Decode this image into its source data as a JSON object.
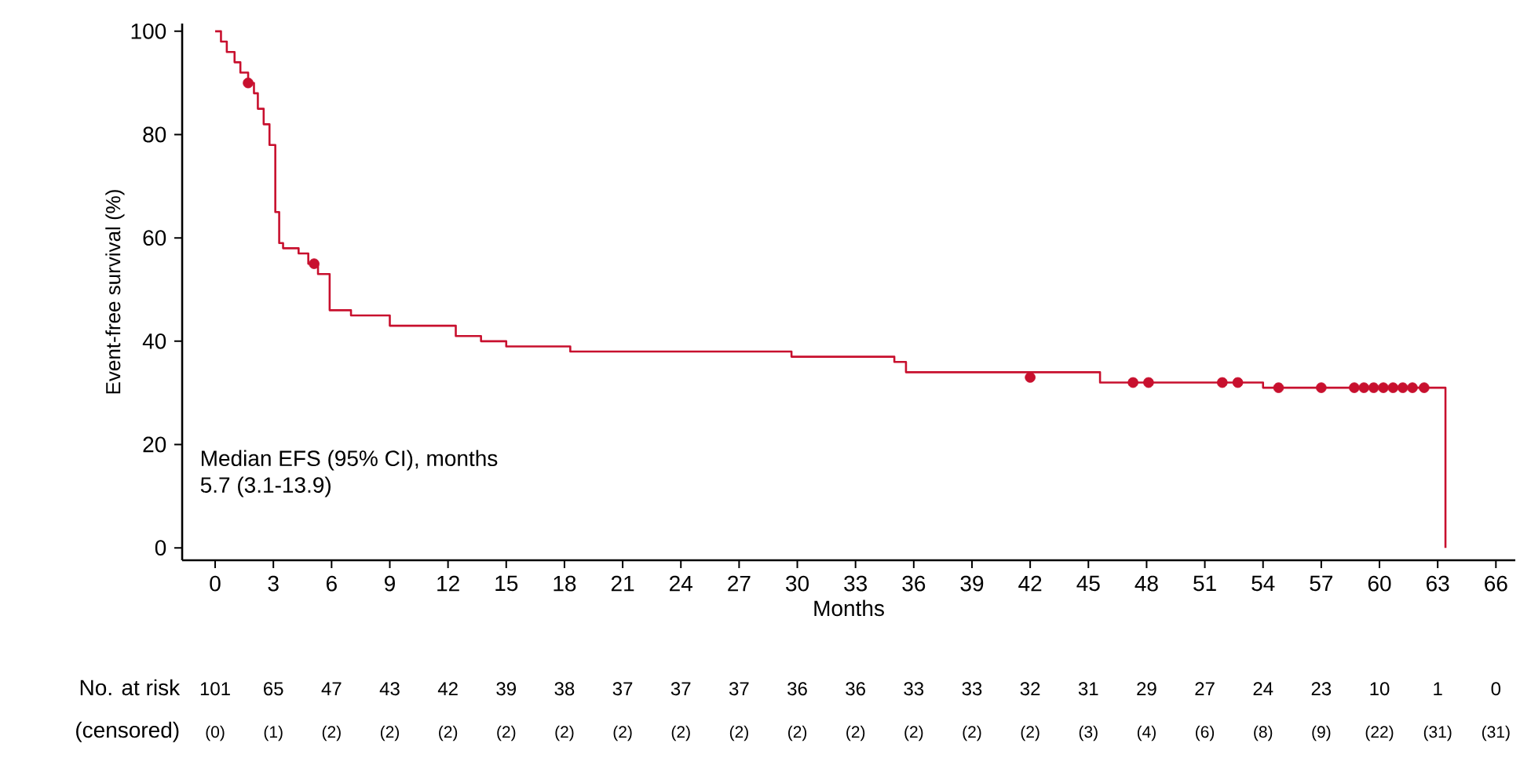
{
  "chart_data": {
    "type": "step",
    "xlabel": "Months",
    "ylabel": "Event-free survival (%)",
    "xlim": [
      -1.7,
      67
    ],
    "ylim": [
      -2.4,
      101.5
    ],
    "xticks": [
      0,
      3,
      6,
      9,
      12,
      15,
      18,
      21,
      24,
      27,
      30,
      33,
      36,
      39,
      42,
      45,
      48,
      51,
      54,
      57,
      60,
      63,
      66
    ],
    "yticks": [
      0,
      20,
      40,
      60,
      80,
      100
    ],
    "grid": false,
    "series": [
      {
        "color": "#c8102e",
        "line_style": "solid",
        "x": [
          0,
          0.3,
          0.6,
          1.0,
          1.3,
          1.7,
          2.0,
          2.2,
          2.5,
          2.8,
          3.1,
          3.3,
          3.5,
          4.3,
          4.8,
          5.3,
          5.9,
          7.0,
          9.0,
          12.4,
          13.7,
          15.0,
          18.3,
          29.7,
          35.0,
          35.6,
          45.6,
          54.0,
          63.4
        ],
        "values": [
          100,
          98,
          96,
          94,
          92,
          90,
          88,
          85,
          82,
          78,
          65,
          59,
          58,
          57,
          55,
          53,
          46,
          45,
          43,
          41,
          40,
          39,
          38,
          37,
          36,
          34,
          32,
          31,
          0
        ]
      },
      {
        "type": "scatter",
        "color": "#c8102e",
        "marker": "circle",
        "x": [
          1.7,
          5.1,
          42.0,
          47.3,
          48.1,
          51.9,
          52.7,
          54.8,
          57.0,
          58.7,
          59.2,
          59.7,
          60.2,
          60.7,
          61.2,
          61.7,
          62.3
        ],
        "values": [
          90,
          55,
          33,
          32,
          32,
          32,
          32,
          31,
          31,
          31,
          31,
          31,
          31,
          31,
          31,
          31,
          31
        ]
      }
    ],
    "annotations": [
      "Median EFS (95% CI), months",
      "5.7 (3.1-13.9)",
      "No. at risk",
      "101",
      "65",
      "47",
      "43",
      "42",
      "39",
      "38",
      "37",
      "37",
      "37",
      "36",
      "36",
      "33",
      "33",
      "32",
      "31",
      "29",
      "27",
      "24",
      "23",
      "10",
      "1",
      "0",
      "(censored)",
      "(0)",
      "(1)",
      "(2)",
      "(2)",
      "(2)",
      "(2)",
      "(2)",
      "(2)",
      "(2)",
      "(2)",
      "(2)",
      "(2)",
      "(2)",
      "(2)",
      "(2)",
      "(3)",
      "(4)",
      "(6)",
      "(8)",
      "(9)",
      "(22)",
      "(31)",
      "(31)"
    ]
  }
}
